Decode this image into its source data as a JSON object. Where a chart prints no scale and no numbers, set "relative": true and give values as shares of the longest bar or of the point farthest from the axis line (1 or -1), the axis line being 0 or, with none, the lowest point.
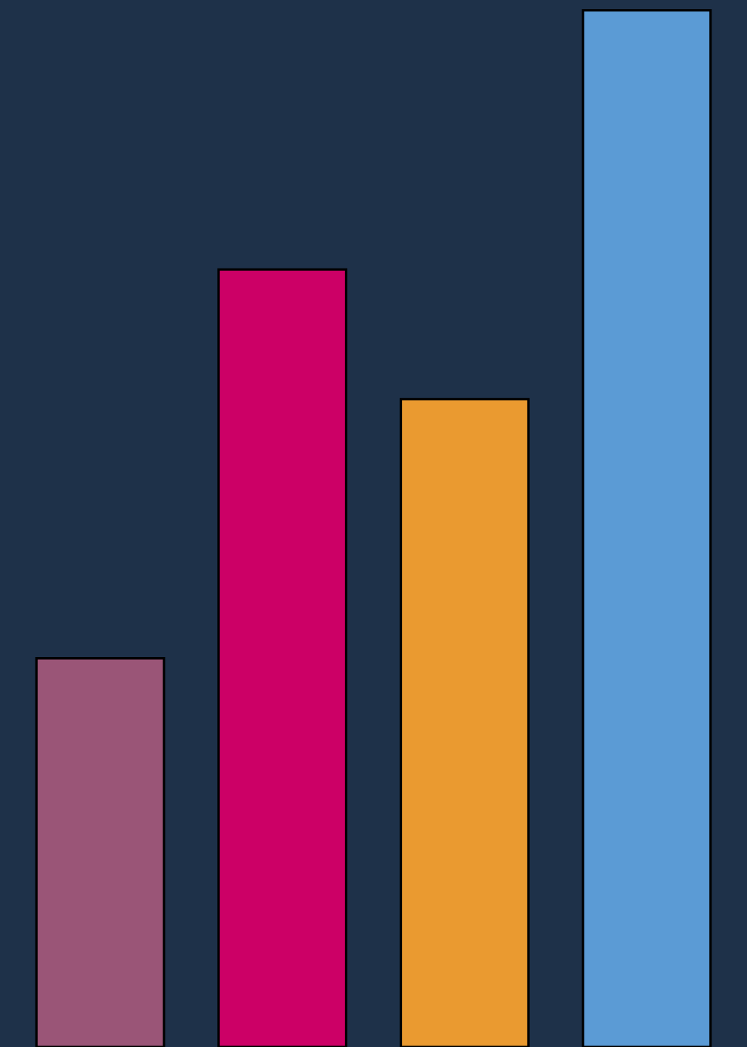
{
  "chart_data": {
    "type": "bar",
    "relative": true,
    "categories": [
      null,
      null,
      null,
      null
    ],
    "values": [
      0.375,
      0.75,
      0.625,
      1
    ],
    "colors": [
      "#9a5577",
      "#cc0066",
      "#ea9a30",
      "#5b9bd5"
    ]
  }
}
